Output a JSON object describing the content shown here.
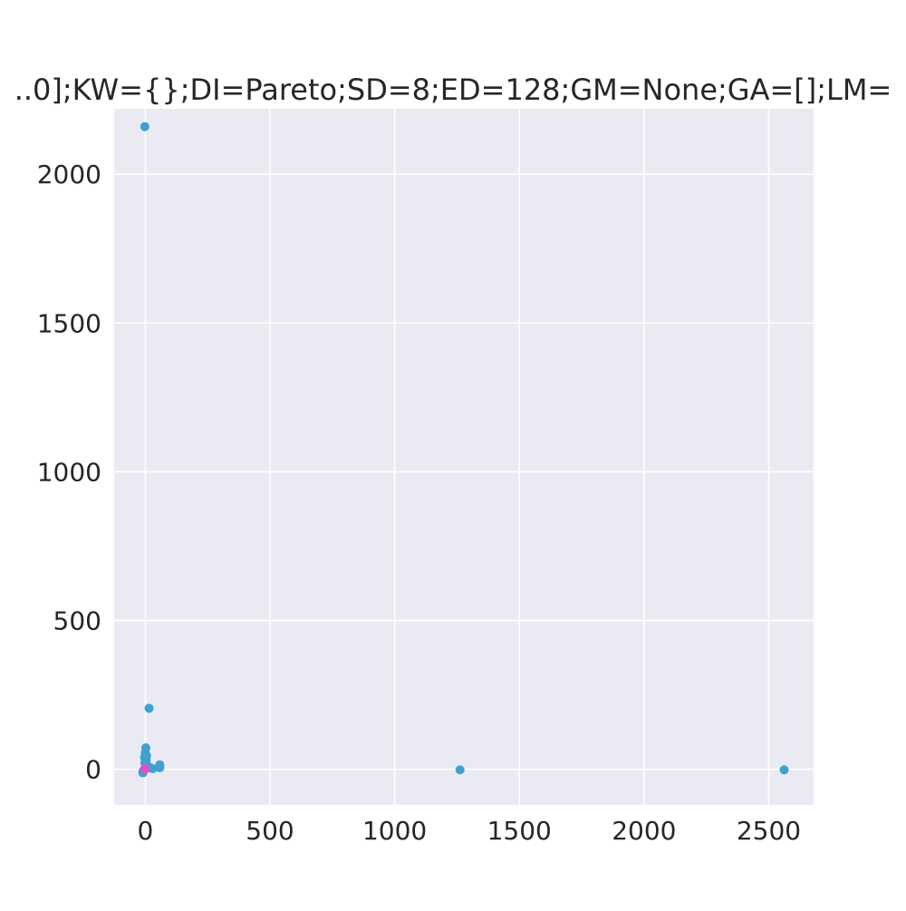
{
  "chart_data": {
    "type": "scatter",
    "title": "..0];KW={};DI=Pareto;SD=8;ED=128;GM=None;GA=[];LM=",
    "xlabel": "",
    "ylabel": "",
    "xlim": [
      -125,
      2680
    ],
    "ylim": [
      -120,
      2220
    ],
    "xticks": [
      0,
      500,
      1000,
      1500,
      2000,
      2500
    ],
    "yticks": [
      0,
      500,
      1000,
      1500,
      2000
    ],
    "xtick_labels": [
      "0",
      "500",
      "1000",
      "1500",
      "2000",
      "2500"
    ],
    "ytick_labels": [
      "0",
      "500",
      "1000",
      "1500",
      "2000"
    ],
    "grid": true,
    "background": "#eaeaf2",
    "grid_color": "#ffffff",
    "series": [
      {
        "color": "#3ba3d0",
        "points": [
          [
            -2,
            2160
          ],
          [
            15,
            205
          ],
          [
            2,
            72
          ],
          [
            0,
            55
          ],
          [
            5,
            45
          ],
          [
            -3,
            40
          ],
          [
            3,
            30
          ],
          [
            -2,
            22
          ],
          [
            6,
            15
          ],
          [
            10,
            8
          ],
          [
            20,
            5
          ],
          [
            58,
            15
          ],
          [
            58,
            5
          ],
          [
            30,
            2
          ],
          [
            -3,
            0
          ],
          [
            -8,
            -5
          ],
          [
            -10,
            -12
          ],
          [
            1262,
            -2
          ],
          [
            2562,
            -2
          ]
        ]
      },
      {
        "color": "#e84ec8",
        "points": [
          [
            0,
            0
          ],
          [
            -2,
            2
          ]
        ]
      }
    ]
  }
}
